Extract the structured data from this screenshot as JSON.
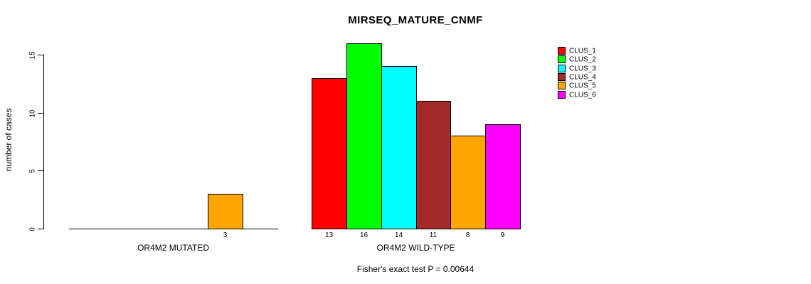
{
  "chart_data": {
    "type": "bar",
    "title": "MIRSEQ_MATURE_CNMF",
    "ylabel": "number of cases",
    "xlabel": "",
    "annotation": "Fisher's exact test P = 0.00644",
    "ylim": [
      0,
      15
    ],
    "yticks": [
      0,
      5,
      10,
      15
    ],
    "grid": false,
    "legend_position": "right",
    "bar_value_labels": "shown under each nonzero bar",
    "categories": [
      "OR4M2 MUTATED",
      "OR4M2 WILD-TYPE"
    ],
    "series": [
      {
        "name": "CLUS_1",
        "color": "#FF0000",
        "values": [
          0,
          13
        ]
      },
      {
        "name": "CLUS_2",
        "color": "#00FF00",
        "values": [
          0,
          16
        ]
      },
      {
        "name": "CLUS_3",
        "color": "#00FFFF",
        "values": [
          0,
          14
        ]
      },
      {
        "name": "CLUS_4",
        "color": "#A52A2A",
        "values": [
          0,
          11
        ]
      },
      {
        "name": "CLUS_5",
        "color": "#FFA500",
        "values": [
          3,
          8
        ]
      },
      {
        "name": "CLUS_6",
        "color": "#FF00FF",
        "values": [
          0,
          9
        ]
      }
    ]
  }
}
